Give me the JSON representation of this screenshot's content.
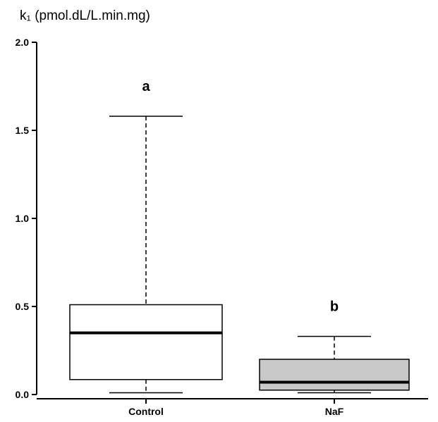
{
  "chart_data": {
    "type": "boxplot",
    "title": "",
    "ylabel": "k₁ (pmol.dL/L.min.mg)",
    "xlabel": "",
    "ylim": [
      0,
      2.0
    ],
    "yticks": [
      0.0,
      0.5,
      1.0,
      1.5,
      2.0
    ],
    "ytick_labels": [
      "0.0",
      "0.5",
      "1.0",
      "1.5",
      "2.0"
    ],
    "grid": false,
    "categories": [
      "Control",
      "NaF"
    ],
    "boxes": [
      {
        "category": "Control",
        "whisker_low": 0.01,
        "q1": 0.085,
        "median": 0.35,
        "q3": 0.51,
        "whisker_high": 1.58,
        "fill": "#ffffff",
        "significance": "a"
      },
      {
        "category": "NaF",
        "whisker_low": 0.01,
        "q1": 0.025,
        "median": 0.07,
        "q3": 0.2,
        "whisker_high": 0.33,
        "fill": "#c8c8c8",
        "significance": "b"
      }
    ]
  }
}
